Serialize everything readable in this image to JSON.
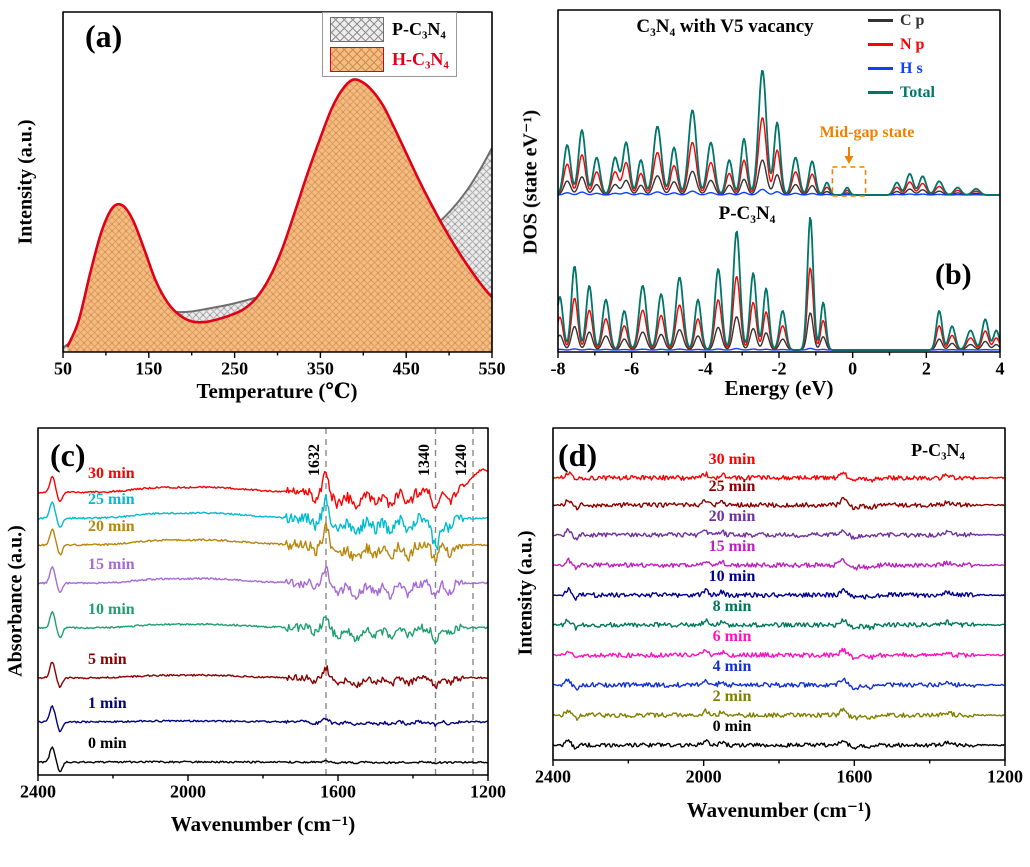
{
  "chart_data": [
    {
      "type": "area",
      "tag": "(a)",
      "xlabel": "Temperature (℃)",
      "ylabel": "Intensity (a.u.)",
      "xlim": [
        50,
        550
      ],
      "xticks": [
        50,
        150,
        250,
        350,
        450,
        550
      ],
      "xticks_minor": [
        100,
        200,
        300,
        400,
        500
      ],
      "legend": [
        {
          "label": "P-C₃N₄",
          "line": "#6e6e6e",
          "fill": "#ededed",
          "hatch": "#8f8f8f",
          "text": "#000000"
        },
        {
          "label": "H-C₃N₄",
          "line": "#e0001a",
          "fill": "#f5bd83",
          "hatch": "#cf8b4b",
          "text": "#e0001a"
        }
      ],
      "series": [
        {
          "name": "P-C₃N₄",
          "points": [
            [
              50,
              0.012
            ],
            [
              68,
              0.06
            ],
            [
              88,
              0.2
            ],
            [
              103,
              0.265
            ],
            [
              118,
              0.245
            ],
            [
              135,
              0.175
            ],
            [
              152,
              0.135
            ],
            [
              172,
              0.12
            ],
            [
              195,
              0.118
            ],
            [
              220,
              0.128
            ],
            [
              248,
              0.142
            ],
            [
              275,
              0.16
            ],
            [
              303,
              0.182
            ],
            [
              330,
              0.205
            ],
            [
              358,
              0.228
            ],
            [
              385,
              0.252
            ],
            [
              412,
              0.278
            ],
            [
              438,
              0.306
            ],
            [
              462,
              0.336
            ],
            [
              485,
              0.375
            ],
            [
              505,
              0.425
            ],
            [
              522,
              0.48
            ],
            [
              538,
              0.545
            ],
            [
              550,
              0.6
            ]
          ]
        },
        {
          "name": "H-C₃N₄",
          "points": [
            [
              55,
              0.015
            ],
            [
              68,
              0.09
            ],
            [
              82,
              0.235
            ],
            [
              95,
              0.355
            ],
            [
              108,
              0.425
            ],
            [
              120,
              0.43
            ],
            [
              132,
              0.385
            ],
            [
              145,
              0.3
            ],
            [
              158,
              0.21
            ],
            [
              172,
              0.145
            ],
            [
              186,
              0.108
            ],
            [
              200,
              0.09
            ],
            [
              215,
              0.088
            ],
            [
              230,
              0.096
            ],
            [
              245,
              0.108
            ],
            [
              260,
              0.125
            ],
            [
              275,
              0.158
            ],
            [
              290,
              0.215
            ],
            [
              305,
              0.3
            ],
            [
              320,
              0.41
            ],
            [
              335,
              0.525
            ],
            [
              350,
              0.63
            ],
            [
              363,
              0.715
            ],
            [
              375,
              0.77
            ],
            [
              387,
              0.8
            ],
            [
              398,
              0.795
            ],
            [
              410,
              0.77
            ],
            [
              423,
              0.725
            ],
            [
              436,
              0.66
            ],
            [
              450,
              0.585
            ],
            [
              464,
              0.51
            ],
            [
              478,
              0.44
            ],
            [
              492,
              0.375
            ],
            [
              506,
              0.315
            ],
            [
              520,
              0.26
            ],
            [
              534,
              0.21
            ],
            [
              544,
              0.178
            ],
            [
              550,
              0.162
            ]
          ]
        }
      ]
    },
    {
      "type": "line",
      "tag": "(b)",
      "title": "C₃N₄ with V5 vacancy",
      "sublabel": "P-C₃N₄",
      "annotation": "Mid-gap state",
      "annotation_color": "#ee8100",
      "xlabel": "Energy (eV)",
      "ylabel": "DOS (state eV⁻¹)",
      "xlim": [
        -8,
        4
      ],
      "xticks": [
        -8,
        -6,
        -4,
        -2,
        0,
        2,
        4
      ],
      "xticks_minor": [
        -7,
        -5,
        -3,
        -1,
        1,
        3
      ],
      "legend": [
        {
          "label": "C p",
          "color": "#333333"
        },
        {
          "label": "N p",
          "color": "#ff0000"
        },
        {
          "label": "H s",
          "color": "#1040ff"
        },
        {
          "label": "Total",
          "color": "#00756a"
        }
      ],
      "midgap_box": {
        "x0": -0.55,
        "x1": 0.35
      },
      "upper": {
        "scales": {
          "C p": 0.28,
          "N p": 0.62,
          "H s": 0.045,
          "Total": 1.0
        },
        "peaks": [
          [
            -7.75,
            0.4,
            0.13
          ],
          [
            -7.35,
            0.52,
            0.13
          ],
          [
            -6.95,
            0.3,
            0.13
          ],
          [
            -6.45,
            0.3,
            0.13
          ],
          [
            -6.15,
            0.42,
            0.13
          ],
          [
            -5.75,
            0.28,
            0.12
          ],
          [
            -5.3,
            0.55,
            0.15
          ],
          [
            -4.85,
            0.38,
            0.13
          ],
          [
            -4.35,
            0.68,
            0.15
          ],
          [
            -3.85,
            0.42,
            0.14
          ],
          [
            -3.35,
            0.28,
            0.12
          ],
          [
            -2.95,
            0.45,
            0.12
          ],
          [
            -2.45,
            1.0,
            0.15
          ],
          [
            -2.05,
            0.58,
            0.12
          ],
          [
            -1.55,
            0.3,
            0.13
          ],
          [
            -1.1,
            0.27,
            0.12
          ],
          [
            -0.7,
            0.1,
            0.1
          ],
          [
            -0.15,
            0.06,
            0.09
          ],
          [
            1.2,
            0.1,
            0.12
          ],
          [
            1.55,
            0.17,
            0.13
          ],
          [
            1.9,
            0.15,
            0.13
          ],
          [
            2.35,
            0.11,
            0.14
          ],
          [
            2.85,
            0.06,
            0.13
          ],
          [
            3.35,
            0.05,
            0.14
          ]
        ]
      },
      "lower": {
        "scales": {
          "C p": 0.28,
          "N p": 0.62,
          "H s": 0.012,
          "Total": 1.0
        },
        "peaks": [
          [
            -7.95,
            0.38,
            0.12
          ],
          [
            -7.55,
            0.6,
            0.12
          ],
          [
            -7.15,
            0.46,
            0.12
          ],
          [
            -6.7,
            0.36,
            0.13
          ],
          [
            -6.2,
            0.28,
            0.12
          ],
          [
            -5.7,
            0.46,
            0.14
          ],
          [
            -5.2,
            0.4,
            0.13
          ],
          [
            -4.7,
            0.52,
            0.14
          ],
          [
            -4.2,
            0.36,
            0.12
          ],
          [
            -3.65,
            0.58,
            0.13
          ],
          [
            -3.15,
            0.85,
            0.13
          ],
          [
            -2.7,
            0.55,
            0.12
          ],
          [
            -2.35,
            0.44,
            0.11
          ],
          [
            -1.9,
            0.28,
            0.12
          ],
          [
            -1.15,
            0.95,
            0.11
          ],
          [
            -0.8,
            0.34,
            0.1
          ],
          [
            2.35,
            0.28,
            0.11
          ],
          [
            2.7,
            0.17,
            0.12
          ],
          [
            3.2,
            0.14,
            0.14
          ],
          [
            3.6,
            0.22,
            0.12
          ],
          [
            3.9,
            0.14,
            0.11
          ]
        ]
      }
    },
    {
      "type": "line",
      "tag": "(c)",
      "xlabel": "Wavenumber (cm⁻¹)",
      "ylabel": "Absorbance (a.u.)",
      "xlim": [
        2400,
        1200
      ],
      "xticks": [
        2400,
        2000,
        1600,
        1200
      ],
      "xticks_minor": [
        2200,
        1800,
        1400
      ],
      "dashed_lines": [
        1632,
        1340,
        1240
      ],
      "noise_window": [
        1265,
        1740
      ],
      "noise_base": 0.013,
      "noise_floor": 0.0025,
      "features_fixed": [
        [
          2362,
          9,
          0.045
        ],
        [
          2341,
          8,
          -0.028
        ]
      ],
      "features_scaled": [
        [
          1632,
          9,
          0.06
        ],
        [
          1662,
          10,
          -0.022
        ],
        [
          1600,
          16,
          -0.035
        ],
        [
          1552,
          20,
          -0.045
        ],
        [
          1500,
          16,
          -0.03
        ],
        [
          1460,
          15,
          -0.04
        ],
        [
          1412,
          14,
          -0.035
        ],
        [
          1340,
          12,
          -0.05
        ],
        [
          1302,
          11,
          -0.028
        ],
        [
          1950,
          140,
          0.015
        ],
        [
          2100,
          80,
          0.008
        ]
      ],
      "series": [
        {
          "label": "30 min",
          "color": "#ff0000",
          "offset": 0.815,
          "activity": 0.95,
          "seed": 8,
          "extra": [
            [
              1212,
              45,
              0.065
            ]
          ]
        },
        {
          "label": "25 min",
          "color": "#00bcd0",
          "offset": 0.74,
          "activity": 1.0,
          "seed": 7,
          "extra": [
            [
              1336,
              20,
              -0.038
            ]
          ]
        },
        {
          "label": "20 min",
          "color": "#b8860b",
          "offset": 0.663,
          "activity": 0.95,
          "seed": 6,
          "extra": []
        },
        {
          "label": "15 min",
          "color": "#a66bd4",
          "offset": 0.553,
          "activity": 0.85,
          "seed": 5,
          "extra": []
        },
        {
          "label": "10 min",
          "color": "#1ea06e",
          "offset": 0.424,
          "activity": 0.7,
          "seed": 4,
          "extra": []
        },
        {
          "label": "5 min",
          "color": "#8b0000",
          "offset": 0.28,
          "activity": 0.5,
          "seed": 3,
          "extra": []
        },
        {
          "label": "1 min",
          "color": "#000080",
          "offset": 0.153,
          "activity": 0.18,
          "seed": 2,
          "extra": []
        },
        {
          "label": "0 min",
          "color": "#000000",
          "offset": 0.037,
          "activity": 0.04,
          "seed": 1,
          "extra": []
        }
      ]
    },
    {
      "type": "line",
      "tag": "(d)",
      "annotation": "P-C₃N₄",
      "xlabel": "Wavenumber (cm⁻¹)",
      "ylabel": "Intensity (a.u.)",
      "xlim": [
        2400,
        1200
      ],
      "xticks": [
        2400,
        2000,
        1600,
        1200
      ],
      "xticks_minor": [
        2200,
        1800,
        1400
      ],
      "noise_window": [
        1280,
        2380
      ],
      "noise_base": 0.005,
      "noise_floor": 0.002,
      "features_fixed": [
        [
          2360,
          8,
          0.016
        ],
        [
          2338,
          7,
          -0.01
        ],
        [
          1995,
          10,
          0.012
        ],
        [
          1952,
          9,
          0.01
        ],
        [
          1630,
          11,
          0.016
        ],
        [
          1598,
          14,
          -0.008
        ],
        [
          1560,
          18,
          -0.008
        ],
        [
          1352,
          12,
          0.008
        ]
      ],
      "features_scaled": [],
      "series": [
        {
          "label": "30 min",
          "color": "#ff0000",
          "offset": 0.85,
          "activity": 1.0,
          "seed": 18,
          "extra": []
        },
        {
          "label": "25 min",
          "color": "#8b0000",
          "offset": 0.768,
          "activity": 1.0,
          "seed": 17,
          "extra": []
        },
        {
          "label": "20 min",
          "color": "#7030a0",
          "offset": 0.678,
          "activity": 1.0,
          "seed": 16,
          "extra": []
        },
        {
          "label": "15 min",
          "color": "#c020c0",
          "offset": 0.587,
          "activity": 1.0,
          "seed": 15,
          "extra": []
        },
        {
          "label": "10 min",
          "color": "#000090",
          "offset": 0.497,
          "activity": 1.0,
          "seed": 14,
          "extra": []
        },
        {
          "label": "8 min",
          "color": "#00785a",
          "offset": 0.407,
          "activity": 1.0,
          "seed": 13,
          "extra": []
        },
        {
          "label": "6 min",
          "color": "#ff10c0",
          "offset": 0.316,
          "activity": 1.0,
          "seed": 12,
          "extra": []
        },
        {
          "label": "4 min",
          "color": "#1030d0",
          "offset": 0.226,
          "activity": 1.0,
          "seed": 11,
          "extra": []
        },
        {
          "label": "2 min",
          "color": "#808000",
          "offset": 0.135,
          "activity": 1.0,
          "seed": 10,
          "extra": []
        },
        {
          "label": "0 min",
          "color": "#000000",
          "offset": 0.045,
          "activity": 0.8,
          "seed": 9,
          "extra": []
        }
      ]
    }
  ]
}
